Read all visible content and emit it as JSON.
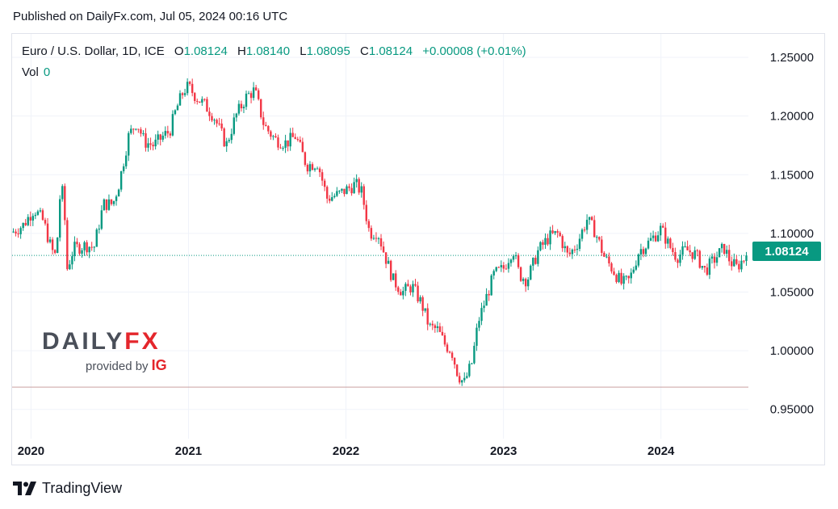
{
  "header": {
    "published": "Published on DailyFx.com, Jul 05, 2024 00:16 UTC"
  },
  "legend": {
    "symbol": "Euro / U.S. Dollar, 1D, ICE",
    "o_label": "O",
    "o_value": "1.08124",
    "h_label": "H",
    "h_value": "1.08140",
    "l_label": "L",
    "l_value": "1.08095",
    "c_label": "C",
    "c_value": "1.08124",
    "change": "+0.00008 (+0.01%)",
    "vol_label": "Vol",
    "vol_value": "0"
  },
  "price_tag": "1.08124",
  "watermark": {
    "word_left": "DAILY",
    "word_right": "FX",
    "provided_by": "provided by",
    "ig": "IG"
  },
  "footer": {
    "brand": "TradingView"
  },
  "colors": {
    "up": "#089981",
    "down": "#F23645",
    "grid": "#f0f3fa",
    "accent": "#089981"
  },
  "chart_data": {
    "type": "candlestick",
    "title": "Euro / U.S. Dollar, 1D, ICE",
    "x_ticks": [
      "2020",
      "2021",
      "2022",
      "2023",
      "2024"
    ],
    "y_ticks": [
      1.25,
      1.2,
      1.15,
      1.1,
      1.05,
      1.0,
      0.95
    ],
    "y_tick_labels": [
      "1.25000",
      "1.20000",
      "1.15000",
      "1.10000",
      "1.05000",
      "1.00000",
      "0.95000"
    ],
    "ylim": [
      0.925,
      1.27
    ],
    "x_range": [
      2019.88,
      2024.55
    ],
    "last_price": 1.08124,
    "reference_low": 0.969,
    "path": [
      [
        2019.88,
        1.101
      ],
      [
        2019.95,
        1.107
      ],
      [
        2020.02,
        1.121
      ],
      [
        2020.08,
        1.11
      ],
      [
        2020.13,
        1.086
      ],
      [
        2020.16,
        1.08
      ],
      [
        2020.19,
        1.144
      ],
      [
        2020.21,
        1.124
      ],
      [
        2020.23,
        1.07
      ],
      [
        2020.27,
        1.087
      ],
      [
        2020.35,
        1.09
      ],
      [
        2020.4,
        1.088
      ],
      [
        2020.46,
        1.125
      ],
      [
        2020.52,
        1.125
      ],
      [
        2020.56,
        1.143
      ],
      [
        2020.62,
        1.183
      ],
      [
        2020.67,
        1.195
      ],
      [
        2020.72,
        1.178
      ],
      [
        2020.78,
        1.175
      ],
      [
        2020.84,
        1.183
      ],
      [
        2020.88,
        1.187
      ],
      [
        2020.92,
        1.205
      ],
      [
        2020.97,
        1.222
      ],
      [
        2021.0,
        1.225
      ],
      [
        2021.05,
        1.216
      ],
      [
        2021.1,
        1.21
      ],
      [
        2021.16,
        1.2
      ],
      [
        2021.24,
        1.175
      ],
      [
        2021.3,
        1.2
      ],
      [
        2021.37,
        1.217
      ],
      [
        2021.42,
        1.222
      ],
      [
        2021.48,
        1.192
      ],
      [
        2021.55,
        1.18
      ],
      [
        2021.62,
        1.177
      ],
      [
        2021.68,
        1.183
      ],
      [
        2021.75,
        1.158
      ],
      [
        2021.82,
        1.16
      ],
      [
        2021.88,
        1.13
      ],
      [
        2021.95,
        1.133
      ],
      [
        2022.0,
        1.137
      ],
      [
        2022.06,
        1.142
      ],
      [
        2022.1,
        1.135
      ],
      [
        2022.15,
        1.1
      ],
      [
        2022.2,
        1.102
      ],
      [
        2022.25,
        1.08
      ],
      [
        2022.3,
        1.06
      ],
      [
        2022.36,
        1.05
      ],
      [
        2022.42,
        1.055
      ],
      [
        2022.48,
        1.04
      ],
      [
        2022.53,
        1.02
      ],
      [
        2022.58,
        1.018
      ],
      [
        2022.63,
        1.005
      ],
      [
        2022.67,
        1.0
      ],
      [
        2022.71,
        0.98
      ],
      [
        2022.75,
        0.972
      ],
      [
        2022.8,
        0.99
      ],
      [
        2022.84,
        1.025
      ],
      [
        2022.89,
        1.045
      ],
      [
        2022.94,
        1.065
      ],
      [
        2023.0,
        1.07
      ],
      [
        2023.06,
        1.087
      ],
      [
        2023.1,
        1.065
      ],
      [
        2023.15,
        1.06
      ],
      [
        2023.22,
        1.085
      ],
      [
        2023.29,
        1.097
      ],
      [
        2023.35,
        1.1
      ],
      [
        2023.41,
        1.08
      ],
      [
        2023.47,
        1.092
      ],
      [
        2023.53,
        1.112
      ],
      [
        2023.58,
        1.102
      ],
      [
        2023.64,
        1.08
      ],
      [
        2023.7,
        1.068
      ],
      [
        2023.75,
        1.057
      ],
      [
        2023.8,
        1.06
      ],
      [
        2023.86,
        1.085
      ],
      [
        2023.92,
        1.092
      ],
      [
        2024.0,
        1.104
      ],
      [
        2024.05,
        1.09
      ],
      [
        2024.1,
        1.08
      ],
      [
        2024.16,
        1.086
      ],
      [
        2024.22,
        1.082
      ],
      [
        2024.28,
        1.068
      ],
      [
        2024.34,
        1.078
      ],
      [
        2024.4,
        1.088
      ],
      [
        2024.44,
        1.076
      ],
      [
        2024.48,
        1.071
      ],
      [
        2024.51,
        1.076
      ],
      [
        2024.55,
        1.081
      ]
    ]
  }
}
